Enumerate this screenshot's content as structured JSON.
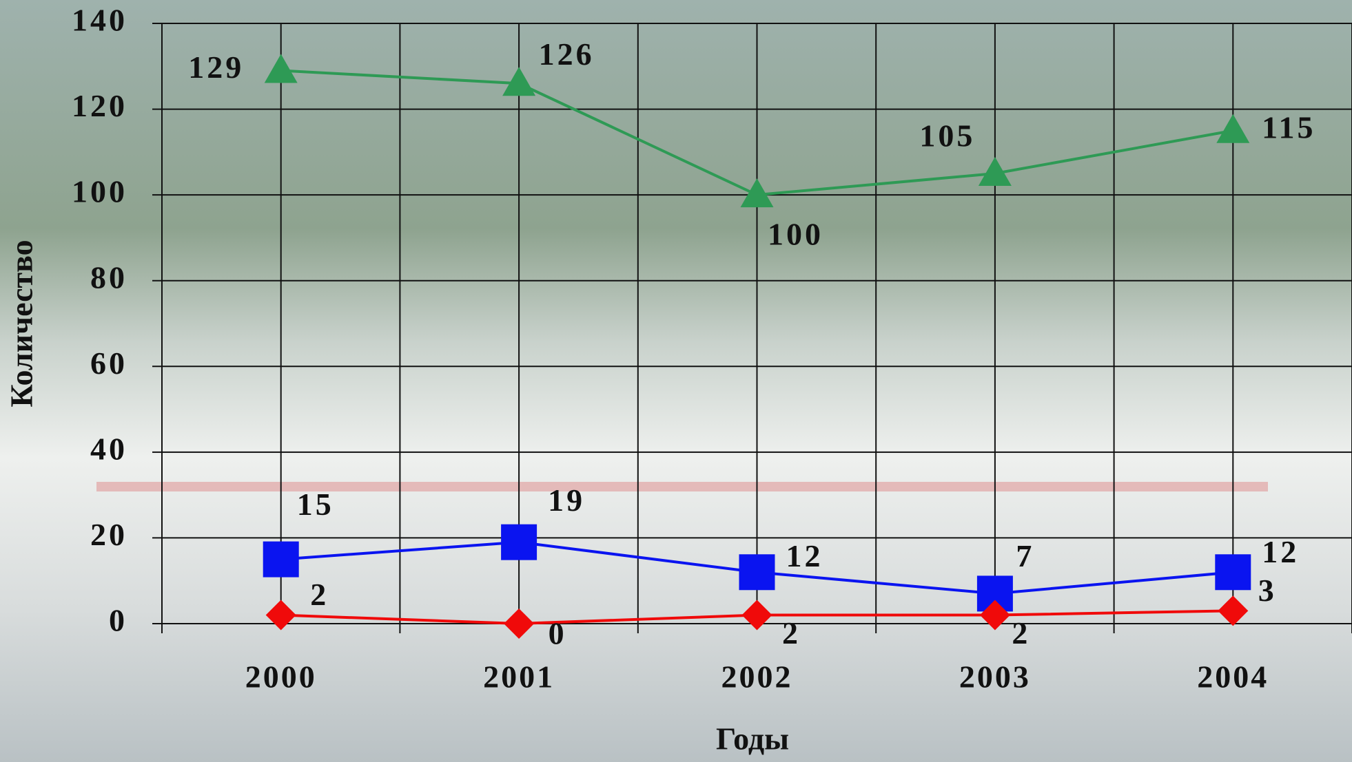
{
  "chart_data": {
    "type": "line",
    "x_label": "Годы",
    "y_label": "Количество",
    "categories": [
      "2000",
      "2001",
      "2002",
      "2003",
      "2004"
    ],
    "series": [
      {
        "color": "#2e9a55",
        "marker": "triangle",
        "values": [
          129,
          126,
          100,
          105,
          115
        ]
      },
      {
        "color": "#0a14f0",
        "marker": "square",
        "values": [
          15,
          19,
          12,
          7,
          12
        ]
      },
      {
        "color": "#f00a0a",
        "marker": "diamond",
        "values": [
          2,
          0,
          2,
          2,
          3
        ]
      }
    ],
    "ylim": [
      0,
      140
    ],
    "yticks": [
      0,
      20,
      40,
      60,
      80,
      100,
      120,
      140
    ],
    "grid": true
  }
}
